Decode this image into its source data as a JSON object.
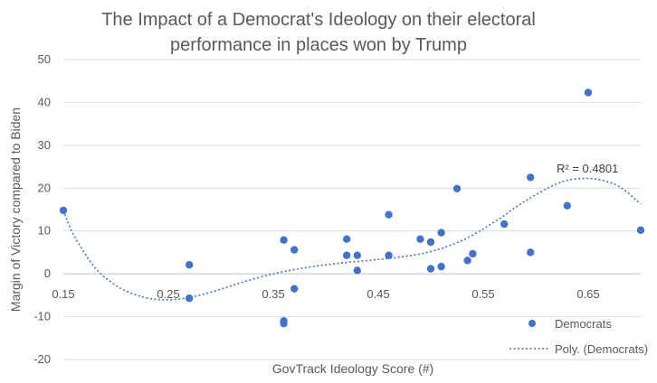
{
  "chart_data": {
    "type": "scatter",
    "title_lines": [
      "The Impact of a Democrat's Ideology on their electoral",
      "performance in places won by Trump"
    ],
    "xlabel": "GovTrack Ideology Score (#)",
    "ylabel": "Margin of Victory compared to Biden",
    "xlim": [
      0.15,
      0.7
    ],
    "ylim": [
      -20,
      50
    ],
    "x_ticks": [
      "0.15",
      "0.25",
      "0.35",
      "0.45",
      "0.55",
      "0.65"
    ],
    "y_ticks": [
      "50",
      "40",
      "30",
      "20",
      "10",
      "0",
      "-10",
      "-20"
    ],
    "grid": "horizontal",
    "legend_position": "bottom-right",
    "colors": {
      "points": "#4472C4",
      "trendline": "#4472C4",
      "grid": "#d9d9d9",
      "text": "#595959"
    },
    "series": [
      {
        "name": "Democrats",
        "points": [
          {
            "x": 0.15,
            "y": 14.8
          },
          {
            "x": 0.27,
            "y": 2.1
          },
          {
            "x": 0.27,
            "y": -5.7
          },
          {
            "x": 0.36,
            "y": 7.9
          },
          {
            "x": 0.36,
            "y": -11.0
          },
          {
            "x": 0.36,
            "y": -11.6
          },
          {
            "x": 0.37,
            "y": 5.6
          },
          {
            "x": 0.37,
            "y": -3.5
          },
          {
            "x": 0.42,
            "y": 8.1
          },
          {
            "x": 0.42,
            "y": 4.3
          },
          {
            "x": 0.43,
            "y": 4.3
          },
          {
            "x": 0.43,
            "y": 0.8
          },
          {
            "x": 0.46,
            "y": 13.8
          },
          {
            "x": 0.46,
            "y": 4.3
          },
          {
            "x": 0.49,
            "y": 8.1
          },
          {
            "x": 0.5,
            "y": 7.4
          },
          {
            "x": 0.5,
            "y": 1.2
          },
          {
            "x": 0.51,
            "y": 9.6
          },
          {
            "x": 0.51,
            "y": 1.7
          },
          {
            "x": 0.525,
            "y": 19.9
          },
          {
            "x": 0.535,
            "y": 3.1
          },
          {
            "x": 0.54,
            "y": 4.7
          },
          {
            "x": 0.57,
            "y": 11.6
          },
          {
            "x": 0.595,
            "y": 22.5
          },
          {
            "x": 0.595,
            "y": 5.0
          },
          {
            "x": 0.63,
            "y": 15.9
          },
          {
            "x": 0.65,
            "y": 42.3
          },
          {
            "x": 0.7,
            "y": 10.2
          }
        ]
      }
    ],
    "trendline": {
      "name": "Poly. (Democrats)",
      "type": "polynomial",
      "r_squared_label": "R² = 0.4801",
      "points": [
        {
          "x": 0.15,
          "y": 14.8
        },
        {
          "x": 0.16,
          "y": 9.0
        },
        {
          "x": 0.18,
          "y": 1.5
        },
        {
          "x": 0.2,
          "y": -2.7
        },
        {
          "x": 0.22,
          "y": -5.0
        },
        {
          "x": 0.24,
          "y": -6.0
        },
        {
          "x": 0.26,
          "y": -5.9
        },
        {
          "x": 0.28,
          "y": -5.0
        },
        {
          "x": 0.3,
          "y": -3.6
        },
        {
          "x": 0.32,
          "y": -2.0
        },
        {
          "x": 0.35,
          "y": 0.0
        },
        {
          "x": 0.38,
          "y": 1.4
        },
        {
          "x": 0.41,
          "y": 2.4
        },
        {
          "x": 0.44,
          "y": 3.1
        },
        {
          "x": 0.47,
          "y": 3.9
        },
        {
          "x": 0.5,
          "y": 5.2
        },
        {
          "x": 0.53,
          "y": 7.8
        },
        {
          "x": 0.56,
          "y": 12.0
        },
        {
          "x": 0.59,
          "y": 17.0
        },
        {
          "x": 0.62,
          "y": 21.0
        },
        {
          "x": 0.64,
          "y": 22.2
        },
        {
          "x": 0.66,
          "y": 22.0
        },
        {
          "x": 0.68,
          "y": 20.3
        },
        {
          "x": 0.7,
          "y": 16.3
        }
      ]
    }
  }
}
